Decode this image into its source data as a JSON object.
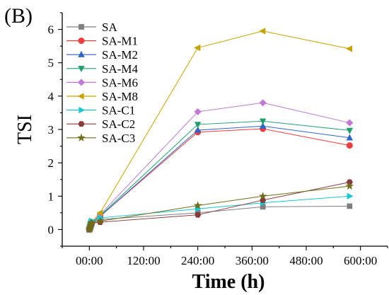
{
  "chart_data": {
    "type": "line",
    "panel_label": "(B)",
    "xlabel": "Time (h)",
    "ylabel": "TSI",
    "x_tick_labels": [
      "00:00",
      "120:00",
      "240:00",
      "360:00",
      "480:00",
      "600:00"
    ],
    "x_ticks_hours": [
      0,
      120,
      240,
      360,
      480,
      600
    ],
    "xlim": [
      -60,
      660
    ],
    "ylim": [
      -0.5,
      6.5
    ],
    "y_ticks": [
      0,
      1,
      2,
      3,
      4,
      5,
      6
    ],
    "grid": false,
    "legend_position": "top-left",
    "x_hours": [
      0,
      1,
      2,
      3,
      4,
      5,
      24,
      240,
      384,
      576
    ],
    "series": [
      {
        "name": "SA",
        "color": "#7f7f7f",
        "marker": "square",
        "values": [
          0.0,
          0.08,
          0.15,
          0.2,
          0.22,
          0.22,
          0.3,
          0.5,
          0.68,
          0.7
        ]
      },
      {
        "name": "SA-M1",
        "color": "#f03c3c",
        "marker": "circle",
        "values": [
          0.0,
          0.02,
          0.06,
          0.1,
          0.14,
          0.18,
          0.4,
          2.92,
          3.02,
          2.52
        ]
      },
      {
        "name": "SA-M2",
        "color": "#2f66c8",
        "marker": "triangle-up",
        "values": [
          0.0,
          0.02,
          0.06,
          0.1,
          0.15,
          0.19,
          0.4,
          2.98,
          3.1,
          2.75
        ]
      },
      {
        "name": "SA-M4",
        "color": "#1fa06b",
        "marker": "triangle-down",
        "values": [
          0.0,
          0.02,
          0.06,
          0.1,
          0.15,
          0.19,
          0.42,
          3.15,
          3.25,
          2.97
        ]
      },
      {
        "name": "SA-M6",
        "color": "#c07ad6",
        "marker": "diamond",
        "values": [
          0.0,
          0.02,
          0.06,
          0.11,
          0.16,
          0.2,
          0.45,
          3.53,
          3.8,
          3.2
        ]
      },
      {
        "name": "SA-M8",
        "color": "#c8a300",
        "marker": "triangle-left",
        "values": [
          0.0,
          0.03,
          0.07,
          0.12,
          0.17,
          0.22,
          0.5,
          5.45,
          5.95,
          5.42
        ]
      },
      {
        "name": "SA-C1",
        "color": "#17c7d4",
        "marker": "triangle-right",
        "values": [
          0.0,
          0.04,
          0.1,
          0.16,
          0.22,
          0.26,
          0.35,
          0.62,
          0.8,
          1.0
        ]
      },
      {
        "name": "SA-C2",
        "color": "#8b3a3a",
        "marker": "hexagon",
        "values": [
          0.0,
          0.03,
          0.08,
          0.12,
          0.16,
          0.18,
          0.22,
          0.44,
          0.88,
          1.42
        ]
      },
      {
        "name": "SA-C3",
        "color": "#6e6e1a",
        "marker": "star",
        "values": [
          0.0,
          0.03,
          0.08,
          0.13,
          0.18,
          0.2,
          0.25,
          0.72,
          1.0,
          1.3
        ]
      }
    ]
  }
}
